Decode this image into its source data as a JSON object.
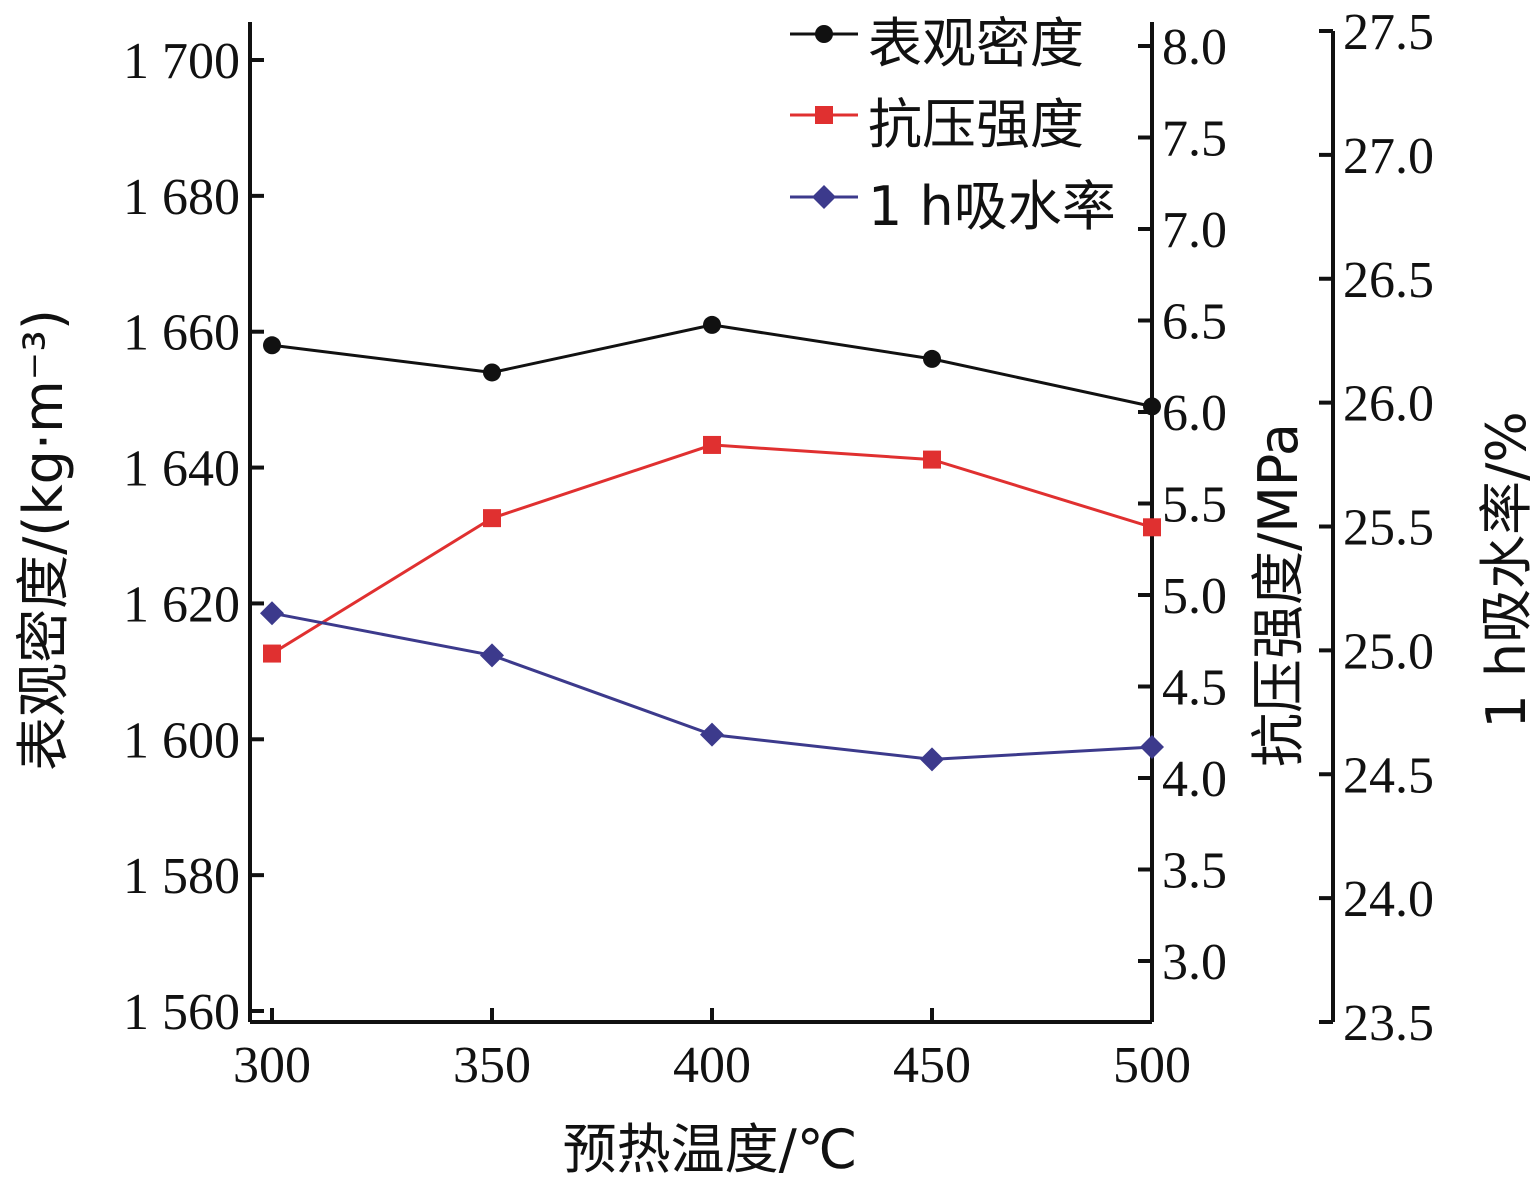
{
  "chart_data": {
    "type": "line",
    "xlabel": "预热温度/℃",
    "x": [
      300,
      350,
      400,
      450,
      500
    ],
    "xticks": [
      "300",
      "350",
      "400",
      "450",
      "500"
    ],
    "xlim": [
      295,
      500
    ],
    "axes": {
      "left": {
        "label": "表观密度/(kg·m⁻³)",
        "ylim": [
          1560,
          1705
        ],
        "ticks": [
          1560,
          1580,
          1600,
          1620,
          1640,
          1660,
          1680,
          1700
        ],
        "tick_labels": [
          "1 560",
          "1 580",
          "1 600",
          "1 620",
          "1 640",
          "1 660",
          "1 680",
          "1 700"
        ]
      },
      "right1": {
        "label": "抗压强度/MPa",
        "ylim": [
          2.6,
          8.3
        ],
        "ticks": [
          3.0,
          3.5,
          4.0,
          4.5,
          5.0,
          5.5,
          6.0,
          6.5,
          7.0,
          7.5,
          8.0
        ],
        "tick_labels": [
          "3.0",
          "3.5",
          "4.0",
          "4.5",
          "5.0",
          "5.5",
          "6.0",
          "6.5",
          "7.0",
          "7.5",
          "8.0"
        ]
      },
      "right2": {
        "label": "1 h吸水率/%",
        "ylim": [
          23.5,
          27.5
        ],
        "ticks": [
          23.5,
          24.0,
          24.5,
          25.0,
          25.5,
          26.0,
          26.5,
          27.0,
          27.5
        ],
        "tick_labels": [
          "23.5",
          "24.0",
          "24.5",
          "25.0",
          "25.5",
          "26.0",
          "26.5",
          "27.0",
          "27.5"
        ]
      }
    },
    "series": [
      {
        "name": "表观密度",
        "axis": "left",
        "color": "#111111",
        "marker": "circle",
        "values": [
          1658,
          1654,
          1661,
          1656,
          1649
        ]
      },
      {
        "name": "抗压强度",
        "axis": "right1",
        "color": "#e03030",
        "marker": "square",
        "values": [
          4.68,
          5.42,
          5.82,
          5.74,
          5.37
        ]
      },
      {
        "name": "1 h吸水率",
        "axis": "right2",
        "color": "#3c3a8c",
        "marker": "diamond",
        "values": [
          25.15,
          24.98,
          24.66,
          24.56,
          24.61
        ]
      }
    ],
    "legend": "top-right",
    "grid": false
  }
}
